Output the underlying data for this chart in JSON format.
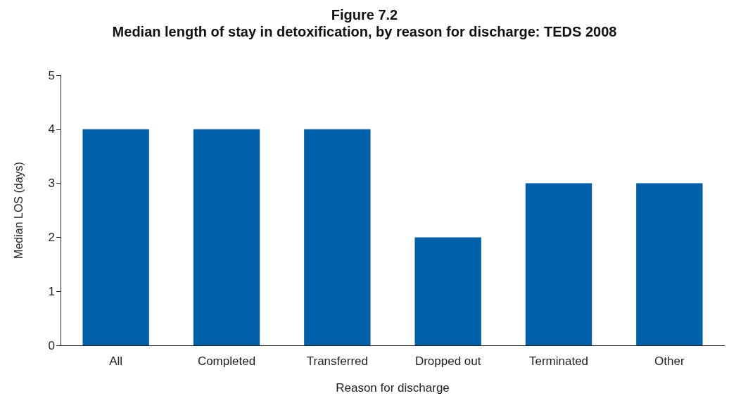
{
  "chart_data": {
    "type": "bar",
    "title": "Figure 7.2",
    "subtitle": "Median length of stay in detoxification, by reason for discharge: TEDS 2008",
    "xlabel": "Reason for discharge",
    "ylabel": "Median LOS (days)",
    "categories": [
      "All",
      "Completed",
      "Transferred",
      "Dropped out",
      "Terminated",
      "Other"
    ],
    "values": [
      4,
      4,
      4,
      2,
      3,
      3
    ],
    "color": "#0061aa",
    "ylim": [
      0,
      5
    ],
    "yticks": [
      0,
      1,
      2,
      3,
      4,
      5
    ],
    "grid": false
  }
}
